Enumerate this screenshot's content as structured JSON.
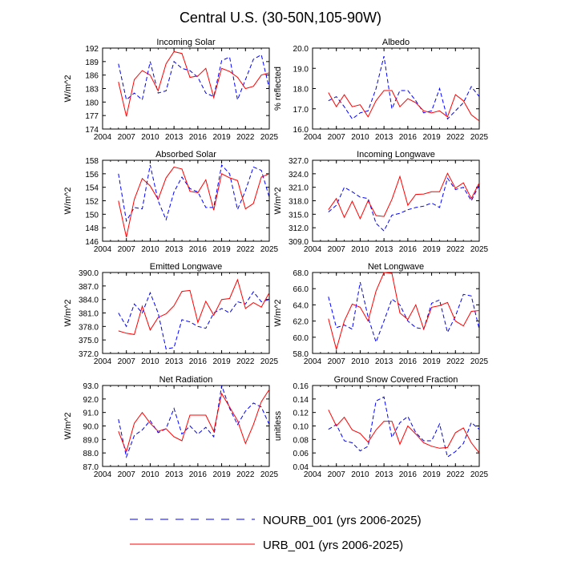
{
  "figure": {
    "title": "Central U.S. (30-50N,105-90W)",
    "legend": [
      {
        "name": "NOURB_001 (yrs 2006-2025)",
        "color": "#0000ff",
        "dash": true
      },
      {
        "name": "URB_001 (yrs 2006-2025)",
        "color": "#ff0000",
        "dash": false
      }
    ]
  },
  "chart_data": [
    {
      "type": "line",
      "title": "Incoming Solar",
      "ylabel": "W/m^2",
      "xlim": [
        2004,
        2025
      ],
      "ylim": [
        174,
        192
      ],
      "xticks": [
        "2004",
        "2007",
        "2010",
        "2013",
        "2016",
        "2019",
        "2022",
        "2025"
      ],
      "yticks": [
        "174",
        "177",
        "180",
        "183",
        "186",
        "189",
        "192"
      ],
      "x": [
        2006,
        2007,
        2008,
        2009,
        2010,
        2011,
        2012,
        2013,
        2014,
        2015,
        2016,
        2017,
        2018,
        2019,
        2020,
        2021,
        2022,
        2023,
        2024,
        2025
      ],
      "series": [
        {
          "name": "NOURB_001 (yrs 2006-2025)",
          "color": "#0000ff",
          "dash": true,
          "values": [
            188.5,
            180.5,
            182,
            180.5,
            189,
            182,
            182.5,
            189,
            187.5,
            187,
            185.5,
            182,
            181.2,
            189.2,
            190,
            180.5,
            185,
            189.5,
            190.5,
            183
          ]
        },
        {
          "name": "URB_001 (yrs 2006-2025)",
          "color": "#ff0000",
          "dash": false,
          "values": [
            184.5,
            176.8,
            185,
            187,
            186,
            182.5,
            188.5,
            191.2,
            190.8,
            185.5,
            185.8,
            187.5,
            181,
            187.5,
            186.8,
            185.5,
            183,
            183.5,
            186,
            186.5
          ]
        }
      ]
    },
    {
      "type": "line",
      "title": "Albedo",
      "ylabel": "% reflected",
      "xlim": [
        2004,
        2025
      ],
      "ylim": [
        16.0,
        20.0
      ],
      "xticks": [
        "2004",
        "2007",
        "2010",
        "2013",
        "2016",
        "2019",
        "2022",
        "2025"
      ],
      "yticks": [
        "16.0",
        "17.0",
        "18.0",
        "19.0",
        "20.0"
      ],
      "x": [
        2006,
        2007,
        2008,
        2009,
        2010,
        2011,
        2012,
        2013,
        2014,
        2015,
        2016,
        2017,
        2018,
        2019,
        2020,
        2021,
        2022,
        2023,
        2024,
        2025
      ],
      "series": [
        {
          "name": "NOURB_001 (yrs 2006-2025)",
          "color": "#0000ff",
          "dash": true,
          "values": [
            17.4,
            17.6,
            17.1,
            16.5,
            16.8,
            16.9,
            18.0,
            19.6,
            17.0,
            17.9,
            17.9,
            17.4,
            16.8,
            16.9,
            18.0,
            16.5,
            16.9,
            17.3,
            18.1,
            17.6
          ]
        },
        {
          "name": "URB_001 (yrs 2006-2025)",
          "color": "#ff0000",
          "dash": false,
          "values": [
            17.8,
            17.1,
            17.7,
            17.1,
            17.2,
            16.6,
            17.4,
            17.9,
            17.9,
            17.1,
            17.5,
            17.3,
            16.9,
            16.8,
            16.9,
            16.6,
            17.7,
            17.4,
            16.7,
            16.4
          ]
        }
      ]
    },
    {
      "type": "line",
      "title": "Absorbed Solar",
      "ylabel": "W/m^2",
      "xlim": [
        2004,
        2025
      ],
      "ylim": [
        146,
        158
      ],
      "xticks": [
        "2004",
        "2007",
        "2010",
        "2013",
        "2016",
        "2019",
        "2022",
        "2025"
      ],
      "yticks": [
        "146",
        "148",
        "150",
        "152",
        "154",
        "156",
        "158"
      ],
      "x": [
        2006,
        2007,
        2008,
        2009,
        2010,
        2011,
        2012,
        2013,
        2014,
        2015,
        2016,
        2017,
        2018,
        2019,
        2020,
        2021,
        2022,
        2023,
        2024,
        2025
      ],
      "series": [
        {
          "name": "NOURB_001 (yrs 2006-2025)",
          "color": "#0000ff",
          "dash": true,
          "values": [
            156,
            149,
            151,
            150.8,
            157.3,
            152,
            149.2,
            153.3,
            155.5,
            153.8,
            153.3,
            151,
            151,
            157.3,
            156,
            150.7,
            153.5,
            157,
            156.5,
            152.5
          ]
        },
        {
          "name": "URB_001 (yrs 2006-2025)",
          "color": "#ff0000",
          "dash": false,
          "values": [
            152,
            146.6,
            152.2,
            155.3,
            154.2,
            152.2,
            155.4,
            157,
            156.7,
            153.4,
            153.2,
            155.1,
            150.6,
            156,
            155.4,
            155,
            150.8,
            151.6,
            155.5,
            156
          ]
        }
      ]
    },
    {
      "type": "line",
      "title": "Incoming Longwave",
      "ylabel": "W/m^2",
      "xlim": [
        2004,
        2025
      ],
      "ylim": [
        309.0,
        327.0
      ],
      "xticks": [
        "2004",
        "2007",
        "2010",
        "2013",
        "2016",
        "2019",
        "2022",
        "2025"
      ],
      "yticks": [
        "309.0",
        "312.0",
        "315.0",
        "318.0",
        "321.0",
        "324.0",
        "327.0"
      ],
      "x": [
        2006,
        2007,
        2008,
        2009,
        2010,
        2011,
        2012,
        2013,
        2014,
        2015,
        2016,
        2017,
        2018,
        2019,
        2020,
        2021,
        2022,
        2023,
        2024,
        2025
      ],
      "series": [
        {
          "name": "NOURB_001 (yrs 2006-2025)",
          "color": "#0000ff",
          "dash": true,
          "values": [
            315.5,
            317,
            321,
            320,
            318.8,
            318.5,
            313,
            311.3,
            314.8,
            315.2,
            316,
            316.5,
            316.8,
            317.5,
            316.5,
            323,
            320.5,
            321,
            318,
            321.5
          ]
        },
        {
          "name": "URB_001 (yrs 2006-2025)",
          "color": "#ff0000",
          "dash": false,
          "values": [
            316,
            318.5,
            314.3,
            317.9,
            314,
            318,
            314.7,
            314.5,
            318.3,
            323.4,
            317,
            319.4,
            319.5,
            320,
            320,
            324.1,
            320.8,
            322,
            318.5,
            322
          ]
        }
      ]
    },
    {
      "type": "line",
      "title": "Emitted Longwave",
      "ylabel": "W/m^2",
      "xlim": [
        2004,
        2025
      ],
      "ylim": [
        372.0,
        390.0
      ],
      "xticks": [
        "2004",
        "2007",
        "2010",
        "2013",
        "2016",
        "2019",
        "2022",
        "2025"
      ],
      "yticks": [
        "372.0",
        "375.0",
        "378.0",
        "381.0",
        "384.0",
        "387.0",
        "390.0"
      ],
      "x": [
        2006,
        2007,
        2008,
        2009,
        2010,
        2011,
        2012,
        2013,
        2014,
        2015,
        2016,
        2017,
        2018,
        2019,
        2020,
        2021,
        2022,
        2023,
        2024,
        2025
      ],
      "series": [
        {
          "name": "NOURB_001 (yrs 2006-2025)",
          "color": "#0000ff",
          "dash": true,
          "values": [
            381,
            378,
            383,
            381,
            385.5,
            381,
            373,
            373.3,
            379.5,
            379,
            378,
            377.6,
            381,
            382,
            381,
            383.5,
            383,
            385.7,
            383.5,
            384
          ]
        },
        {
          "name": "URB_001 (yrs 2006-2025)",
          "color": "#ff0000",
          "dash": false,
          "values": [
            377,
            376.5,
            376.2,
            382.5,
            377.2,
            380,
            380.8,
            382.6,
            385.8,
            386,
            378.9,
            383.6,
            380.5,
            384,
            384.2,
            388.4,
            382,
            383.3,
            382.3,
            385.5
          ]
        }
      ]
    },
    {
      "type": "line",
      "title": "Net Longwave",
      "ylabel": "W/m^2",
      "xlim": [
        2004,
        2025
      ],
      "ylim": [
        58.0,
        68.0
      ],
      "xticks": [
        "2004",
        "2007",
        "2010",
        "2013",
        "2016",
        "2019",
        "2022",
        "2025"
      ],
      "yticks": [
        "58.0",
        "60.0",
        "62.0",
        "64.0",
        "66.0",
        "68.0"
      ],
      "x": [
        2006,
        2007,
        2008,
        2009,
        2010,
        2011,
        2012,
        2013,
        2014,
        2015,
        2016,
        2017,
        2018,
        2019,
        2020,
        2021,
        2022,
        2023,
        2024,
        2025
      ],
      "series": [
        {
          "name": "NOURB_001 (yrs 2006-2025)",
          "color": "#0000ff",
          "dash": true,
          "values": [
            65,
            61.2,
            61.5,
            61,
            66.8,
            62.5,
            59.4,
            62,
            64.7,
            64,
            62,
            61.2,
            61,
            64.2,
            64.6,
            60.6,
            62.6,
            65.3,
            65.1,
            61
          ]
        },
        {
          "name": "URB_001 (yrs 2006-2025)",
          "color": "#ff0000",
          "dash": false,
          "values": [
            62.3,
            58.5,
            62,
            64.1,
            63.7,
            62,
            65.7,
            68,
            67.9,
            63,
            62.2,
            64,
            61,
            63.7,
            63.9,
            64.3,
            62,
            61.4,
            63.2,
            63.3
          ]
        }
      ]
    },
    {
      "type": "line",
      "title": "Net Radiation",
      "ylabel": "W/m^2",
      "xlim": [
        2004,
        2025
      ],
      "ylim": [
        87.0,
        93.0
      ],
      "xticks": [
        "2004",
        "2007",
        "2010",
        "2013",
        "2016",
        "2019",
        "2022",
        "2025"
      ],
      "yticks": [
        "87.0",
        "88.0",
        "89.0",
        "90.0",
        "91.0",
        "92.0",
        "93.0"
      ],
      "x": [
        2006,
        2007,
        2008,
        2009,
        2010,
        2011,
        2012,
        2013,
        2014,
        2015,
        2016,
        2017,
        2018,
        2019,
        2020,
        2021,
        2022,
        2023,
        2024,
        2025
      ],
      "series": [
        {
          "name": "NOURB_001 (yrs 2006-2025)",
          "color": "#0000ff",
          "dash": true,
          "values": [
            90.5,
            87.7,
            89.3,
            89.7,
            90.4,
            89.5,
            89.8,
            91.3,
            89.4,
            90,
            89.4,
            89.9,
            89.2,
            93,
            91.3,
            90.1,
            91.1,
            91.7,
            91.4,
            90.1
          ]
        },
        {
          "name": "URB_001 (yrs 2006-2025)",
          "color": "#ff0000",
          "dash": false,
          "values": [
            89.6,
            88.1,
            90.2,
            91,
            90.2,
            89.6,
            89.8,
            89.2,
            88.9,
            90.8,
            90.8,
            90.8,
            89.6,
            92.4,
            91.4,
            90.4,
            88.7,
            90.1,
            91.8,
            92.7
          ]
        }
      ]
    },
    {
      "type": "line",
      "title": "Ground Snow Covered Fraction",
      "ylabel": "unitless",
      "xlim": [
        2004,
        2025
      ],
      "ylim": [
        0.04,
        0.16
      ],
      "xticks": [
        "2004",
        "2007",
        "2010",
        "2013",
        "2016",
        "2019",
        "2022",
        "2025"
      ],
      "yticks": [
        "0.04",
        "0.06",
        "0.08",
        "0.10",
        "0.12",
        "0.14",
        "0.16"
      ],
      "x": [
        2006,
        2007,
        2008,
        2009,
        2010,
        2011,
        2012,
        2013,
        2014,
        2015,
        2016,
        2017,
        2018,
        2019,
        2020,
        2021,
        2022,
        2023,
        2024,
        2025
      ],
      "series": [
        {
          "name": "NOURB_001 (yrs 2006-2025)",
          "color": "#0000ff",
          "dash": true,
          "values": [
            0.095,
            0.102,
            0.078,
            0.075,
            0.063,
            0.07,
            0.137,
            0.143,
            0.083,
            0.105,
            0.114,
            0.09,
            0.078,
            0.078,
            0.103,
            0.054,
            0.062,
            0.074,
            0.105,
            0.095
          ]
        },
        {
          "name": "URB_001 (yrs 2006-2025)",
          "color": "#ff0000",
          "dash": false,
          "values": [
            0.124,
            0.1,
            0.113,
            0.094,
            0.089,
            0.076,
            0.094,
            0.107,
            0.107,
            0.073,
            0.1,
            0.088,
            0.075,
            0.07,
            0.067,
            0.068,
            0.09,
            0.097,
            0.075,
            0.06
          ]
        }
      ]
    }
  ]
}
